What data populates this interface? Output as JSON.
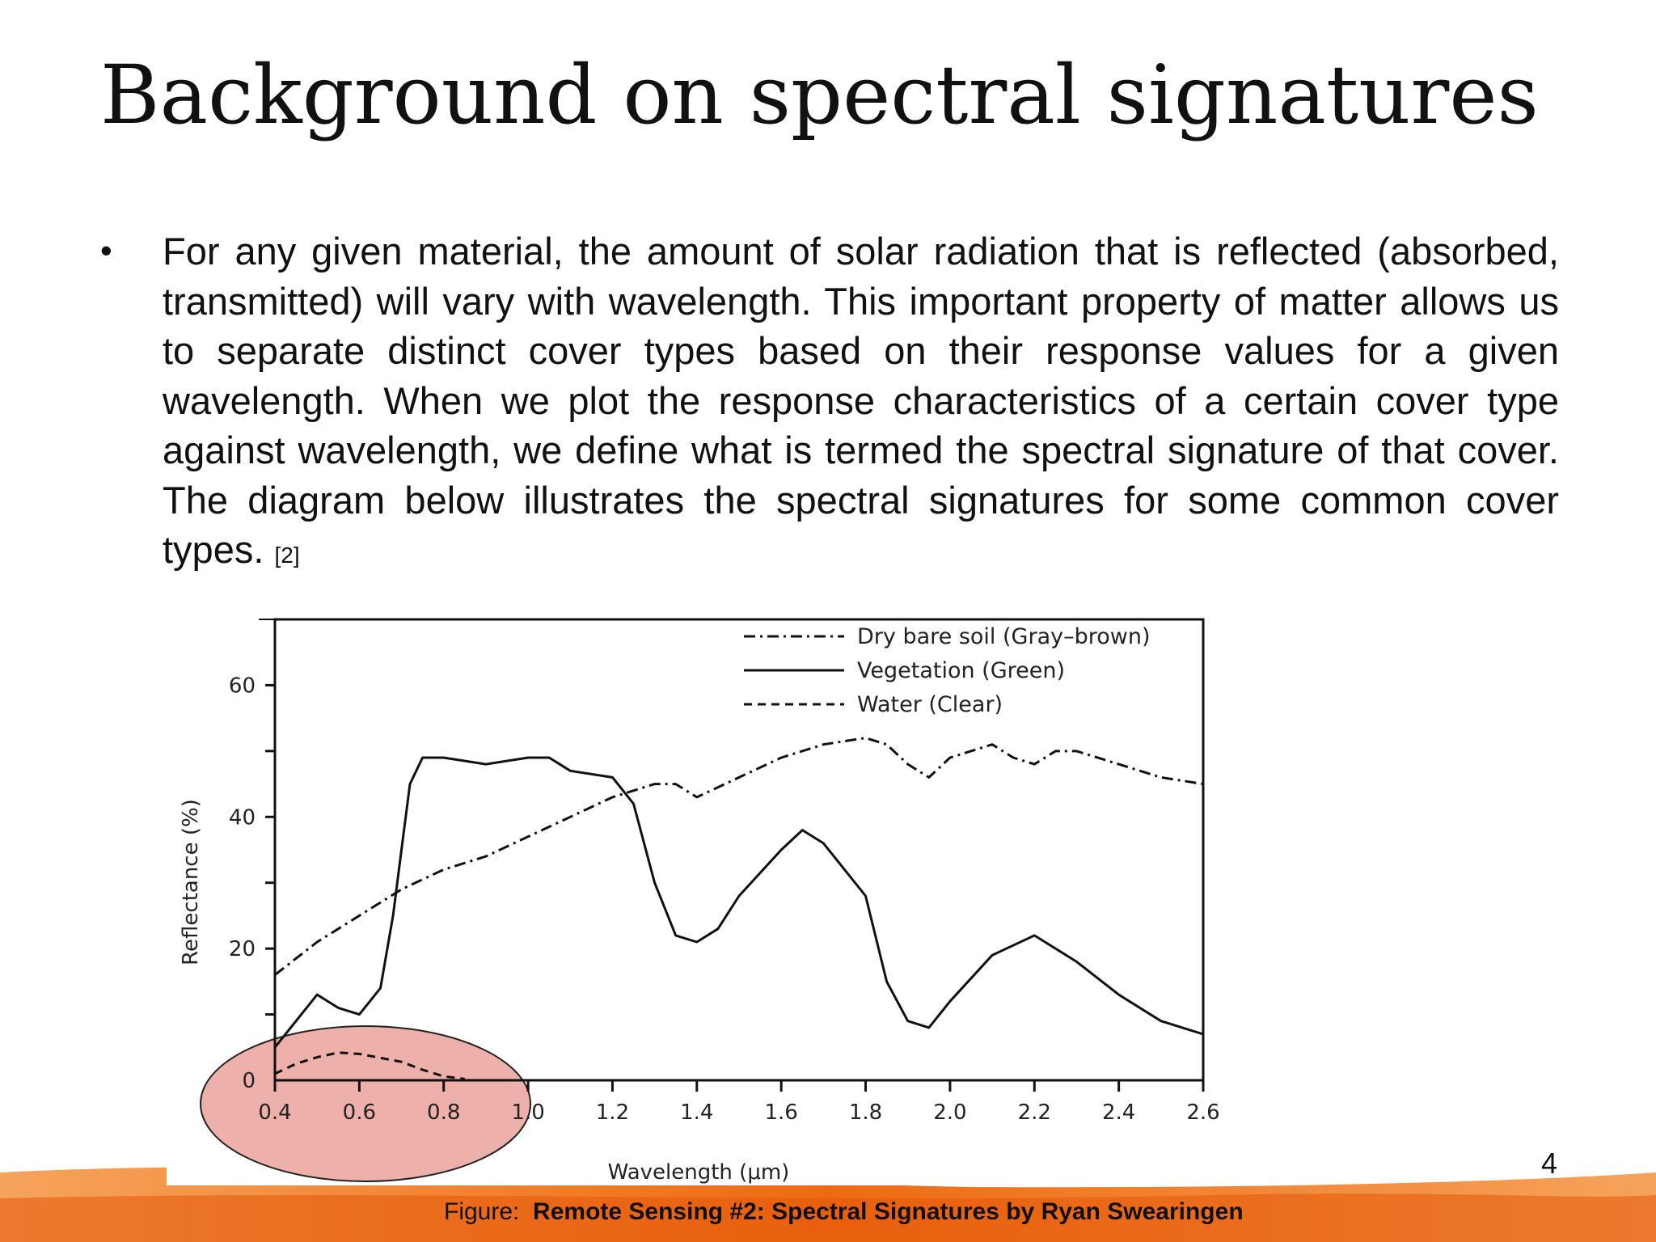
{
  "slide": {
    "title": "Background on spectral signatures",
    "bullet_symbol": "•",
    "bullet_text": "For any given material, the amount of solar radiation that is reflected (absorbed, transmitted) will vary with wavelength. This important property of matter allows us to separate distinct cover types based on their response values for a given wavelength. When we plot the response characteristics of a certain cover type against wavelength, we define what is termed the spectral signature of that cover. The diagram below illustrates the spectral signatures for some common cover types.",
    "bullet_ref": "[2]",
    "caption_prefix": "Figure:",
    "caption_bold": "Remote Sensing #2: Spectral Signatures by Ryan Swearingen",
    "page_number": "4",
    "colors": {
      "band_orange": "#ee6a12",
      "band_light": "#f6a35c",
      "highlight_fill": "#eeb0aa",
      "text": "#111111"
    }
  },
  "chart_data": {
    "type": "line",
    "title": "",
    "xlabel": "Wavelength (μm)",
    "ylabel": "Reflectance (%)",
    "xlim": [
      0.4,
      2.6
    ],
    "ylim": [
      0,
      70
    ],
    "x_ticks": [
      "0.4",
      "0.6",
      "0.8",
      "1.0",
      "1.2",
      "1.4",
      "1.6",
      "1.8",
      "2.0",
      "2.2",
      "2.4",
      "2.6"
    ],
    "y_ticks": [
      "0",
      "20",
      "40",
      "60"
    ],
    "legend_position": "top-right",
    "grid": false,
    "series": [
      {
        "name": "Dry bare soil (Gray–brown)",
        "style": "dash-dot",
        "x": [
          0.4,
          0.5,
          0.6,
          0.7,
          0.8,
          0.9,
          1.0,
          1.1,
          1.2,
          1.3,
          1.35,
          1.4,
          1.5,
          1.6,
          1.7,
          1.8,
          1.85,
          1.9,
          1.95,
          2.0,
          2.1,
          2.15,
          2.2,
          2.25,
          2.3,
          2.4,
          2.5,
          2.6
        ],
        "y": [
          16,
          21,
          25,
          29,
          32,
          34,
          37,
          40,
          43,
          45,
          45,
          43,
          46,
          49,
          51,
          52,
          51,
          48,
          46,
          49,
          51,
          49,
          48,
          50,
          50,
          48,
          46,
          45
        ]
      },
      {
        "name": "Vegetation (Green)",
        "style": "solid",
        "x": [
          0.4,
          0.45,
          0.5,
          0.55,
          0.6,
          0.65,
          0.68,
          0.7,
          0.72,
          0.75,
          0.8,
          0.9,
          1.0,
          1.05,
          1.1,
          1.2,
          1.25,
          1.3,
          1.35,
          1.4,
          1.45,
          1.5,
          1.6,
          1.65,
          1.7,
          1.8,
          1.85,
          1.9,
          1.95,
          2.0,
          2.1,
          2.2,
          2.3,
          2.4,
          2.5,
          2.6
        ],
        "y": [
          5,
          9,
          13,
          11,
          10,
          14,
          25,
          35,
          45,
          49,
          49,
          48,
          49,
          49,
          47,
          46,
          42,
          30,
          22,
          21,
          23,
          28,
          35,
          38,
          36,
          28,
          15,
          9,
          8,
          12,
          19,
          22,
          18,
          13,
          9,
          7
        ]
      },
      {
        "name": "Water (Clear)",
        "style": "dashed",
        "x": [
          0.4,
          0.45,
          0.5,
          0.55,
          0.6,
          0.65,
          0.7,
          0.75,
          0.8,
          0.85
        ],
        "y": [
          1,
          2.5,
          3.5,
          4.2,
          4,
          3.4,
          2.8,
          1.6,
          0.6,
          0.2
        ]
      }
    ]
  }
}
